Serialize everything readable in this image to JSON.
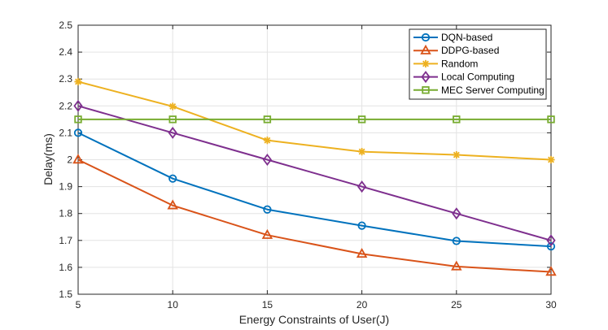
{
  "chart_data": {
    "type": "line",
    "title": "",
    "xlabel": "Energy Constraints of User(J)",
    "ylabel": "Delay(ms)",
    "x": [
      5,
      10,
      15,
      20,
      25,
      30
    ],
    "xlim": [
      5,
      30
    ],
    "ylim": [
      1.5,
      2.5
    ],
    "xticks": [
      5,
      10,
      15,
      20,
      25,
      30
    ],
    "yticks": [
      1.5,
      1.6,
      1.7,
      1.8,
      1.9,
      2.0,
      2.1,
      2.2,
      2.3,
      2.4,
      2.5
    ],
    "xtick_labels": [
      "5",
      "10",
      "15",
      "20",
      "25",
      "30"
    ],
    "ytick_labels": [
      "1.5",
      "1.6",
      "1.7",
      "1.8",
      "1.9",
      "2",
      "2.1",
      "2.2",
      "2.3",
      "2.4",
      "2.5"
    ],
    "grid": true,
    "legend_position": "top-right",
    "series": [
      {
        "name": "DQN-based",
        "values": [
          2.1,
          1.93,
          1.815,
          1.755,
          1.698,
          1.678
        ],
        "color": "#0072BD",
        "marker": "circle"
      },
      {
        "name": "DDPG-based",
        "values": [
          2.0,
          1.83,
          1.72,
          1.65,
          1.603,
          1.583
        ],
        "color": "#D95319",
        "marker": "triangle"
      },
      {
        "name": "Random",
        "values": [
          2.29,
          2.198,
          2.072,
          2.03,
          2.018,
          2.0
        ],
        "color": "#EDB120",
        "marker": "star"
      },
      {
        "name": "Local Computing",
        "values": [
          2.2,
          2.1,
          2.0,
          1.9,
          1.8,
          1.7
        ],
        "color": "#7E2F8E",
        "marker": "diamond"
      },
      {
        "name": "MEC Server Computing",
        "values": [
          2.15,
          2.15,
          2.15,
          2.15,
          2.15,
          2.15
        ],
        "color": "#77AC30",
        "marker": "square"
      }
    ]
  }
}
